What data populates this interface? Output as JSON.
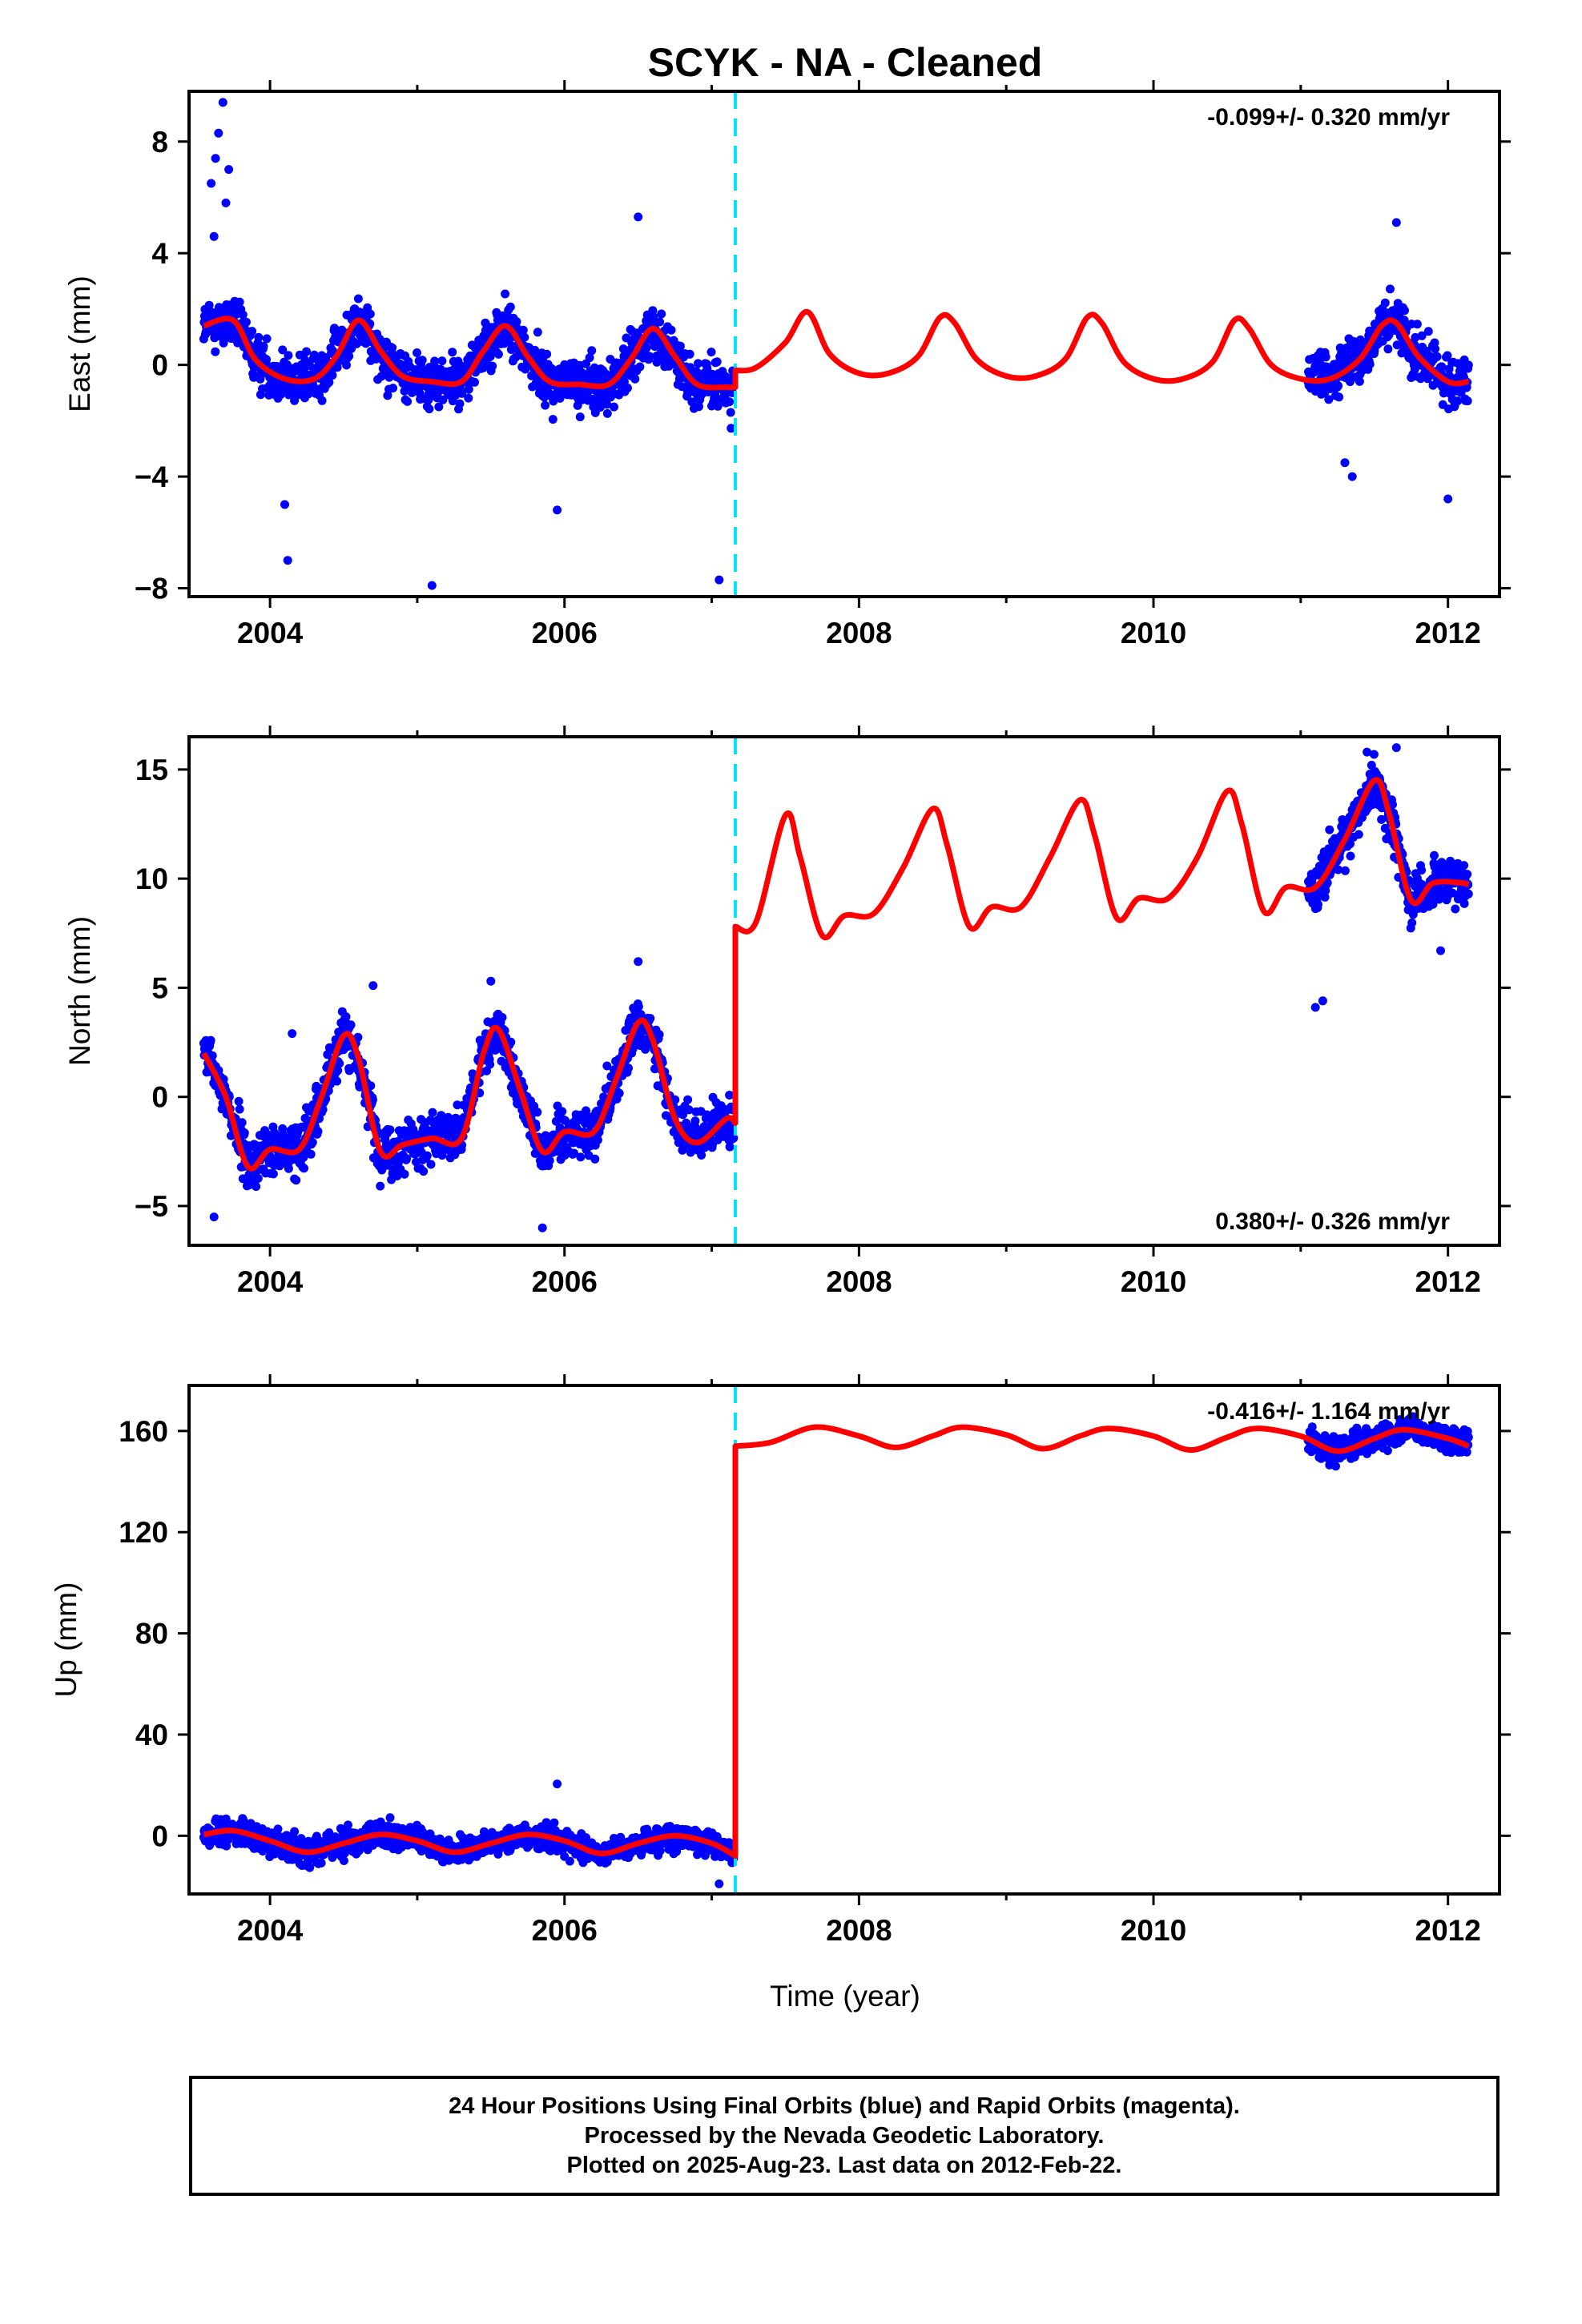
{
  "chart_data": {
    "type": "scatter",
    "title": "SCYK  - NA - Cleaned",
    "xlabel": "Time (year)",
    "xlim": [
      2003.45,
      2012.35
    ],
    "x_ticks": [
      "2004",
      "2006",
      "2008",
      "2010",
      "2012"
    ],
    "offset_epoch": 2007.16,
    "colors": {
      "data": "#0000ff",
      "model": "#ff0000",
      "offset": "#00e5ff",
      "frame": "#000000"
    },
    "grid": false,
    "data_segments": [
      [
        2003.55,
        2007.15
      ],
      [
        2011.05,
        2012.14
      ]
    ],
    "panels": [
      {
        "ylabel": "East (mm)",
        "rate": "-0.099+/- 0.320 mm/yr",
        "rate_position": "top-right",
        "ylim": [
          -8.3,
          9.8
        ],
        "y_ticks": [
          "8",
          "4",
          "0",
          "−4",
          "−8"
        ],
        "model": {
          "x": [
            2003.55,
            2003.75,
            2003.9,
            2004.1,
            2004.3,
            2004.45,
            2004.6,
            2004.75,
            2004.9,
            2005.1,
            2005.3,
            2005.45,
            2005.6,
            2005.75,
            2005.9,
            2006.1,
            2006.3,
            2006.45,
            2006.6,
            2006.75,
            2006.9,
            2007.1,
            2007.16,
            2007.16,
            2007.3,
            2007.5,
            2007.65,
            2007.8,
            2008.0,
            2008.2,
            2008.4,
            2008.55,
            2008.65,
            2008.8,
            2009.0,
            2009.2,
            2009.4,
            2009.55,
            2009.65,
            2009.8,
            2010.0,
            2010.2,
            2010.4,
            2010.55,
            2010.65,
            2010.8,
            2011.0,
            2011.2,
            2011.4,
            2011.55,
            2011.65,
            2011.8,
            2012.0,
            2012.14
          ],
          "values": [
            1.4,
            1.6,
            0.2,
            -0.5,
            -0.5,
            0.3,
            1.6,
            0.5,
            -0.4,
            -0.6,
            -0.6,
            0.5,
            1.4,
            0.3,
            -0.6,
            -0.7,
            -0.7,
            0.2,
            1.3,
            0.3,
            -0.7,
            -0.8,
            -0.8,
            -0.2,
            -0.1,
            0.8,
            1.9,
            0.4,
            -0.3,
            -0.3,
            0.3,
            1.7,
            1.5,
            0.2,
            -0.4,
            -0.4,
            0.2,
            1.7,
            1.5,
            0.1,
            -0.5,
            -0.5,
            0.1,
            1.6,
            1.3,
            0.0,
            -0.5,
            -0.5,
            0.2,
            1.4,
            1.5,
            0.3,
            -0.6,
            -0.6
          ]
        },
        "outliers": [
          [
            2003.6,
            6.5
          ],
          [
            2003.63,
            7.4
          ],
          [
            2003.65,
            8.3
          ],
          [
            2003.68,
            9.4
          ],
          [
            2003.7,
            5.8
          ],
          [
            2003.62,
            4.6
          ],
          [
            2003.72,
            7.0
          ],
          [
            2004.1,
            -5.0
          ],
          [
            2004.12,
            -7.0
          ],
          [
            2005.1,
            -7.9
          ],
          [
            2005.95,
            -5.2
          ],
          [
            2006.5,
            5.3
          ],
          [
            2007.05,
            -7.7
          ],
          [
            2011.3,
            -3.5
          ],
          [
            2011.35,
            -4.0
          ],
          [
            2011.65,
            5.1
          ],
          [
            2012.0,
            -4.8
          ]
        ]
      },
      {
        "ylabel": "North (mm)",
        "rate": "0.380+/- 0.326 mm/yr",
        "rate_position": "bottom-right",
        "ylim": [
          -6.8,
          16.5
        ],
        "y_ticks": [
          "15",
          "10",
          "5",
          "0",
          "−5"
        ],
        "model": {
          "x": [
            2003.55,
            2003.7,
            2003.85,
            2004.0,
            2004.2,
            2004.35,
            2004.5,
            2004.6,
            2004.75,
            2004.9,
            2005.1,
            2005.3,
            2005.45,
            2005.55,
            2005.7,
            2005.85,
            2006.0,
            2006.2,
            2006.35,
            2006.5,
            2006.6,
            2006.75,
            2006.9,
            2007.1,
            2007.16,
            2007.16,
            2007.3,
            2007.5,
            2007.6,
            2007.75,
            2007.9,
            2008.1,
            2008.3,
            2008.5,
            2008.6,
            2008.75,
            2008.9,
            2009.1,
            2009.3,
            2009.5,
            2009.6,
            2009.75,
            2009.9,
            2010.1,
            2010.3,
            2010.5,
            2010.6,
            2010.75,
            2010.9,
            2011.1,
            2011.3,
            2011.5,
            2011.6,
            2011.75,
            2011.9,
            2012.1,
            2012.14
          ],
          "values": [
            2.0,
            0.0,
            -3.2,
            -2.4,
            -2.4,
            0.0,
            2.8,
            1.8,
            -2.5,
            -2.2,
            -1.9,
            -1.9,
            2.0,
            3.1,
            0.3,
            -2.5,
            -1.6,
            -1.6,
            0.8,
            3.4,
            2.6,
            -1.0,
            -2.1,
            -1.0,
            -1.2,
            7.8,
            8.0,
            12.9,
            11.0,
            7.4,
            8.3,
            8.4,
            10.5,
            13.2,
            11.5,
            7.8,
            8.7,
            8.7,
            11.0,
            13.6,
            12.0,
            8.2,
            9.1,
            9.1,
            11.0,
            14.0,
            12.5,
            8.5,
            9.6,
            9.6,
            11.8,
            14.5,
            13.0,
            9.0,
            9.8,
            9.8,
            9.7
          ]
        },
        "outliers": [
          [
            2003.62,
            -5.5
          ],
          [
            2004.15,
            2.9
          ],
          [
            2004.7,
            5.1
          ],
          [
            2005.5,
            5.3
          ],
          [
            2005.85,
            -6.0
          ],
          [
            2006.5,
            6.2
          ],
          [
            2011.1,
            4.1
          ],
          [
            2011.15,
            4.4
          ],
          [
            2011.45,
            15.8
          ],
          [
            2011.65,
            16.0
          ],
          [
            2011.95,
            6.7
          ]
        ]
      },
      {
        "ylabel": "Up (mm)",
        "rate": "-0.416+/- 1.164 mm/yr",
        "rate_position": "top-right",
        "ylim": [
          -23,
          178
        ],
        "y_ticks": [
          "160",
          "120",
          "80",
          "40",
          "0"
        ],
        "model": {
          "x": [
            2003.55,
            2003.75,
            2004.0,
            2004.25,
            2004.5,
            2004.75,
            2005.0,
            2005.25,
            2005.5,
            2005.75,
            2006.0,
            2006.25,
            2006.5,
            2006.75,
            2007.0,
            2007.16,
            2007.16,
            2007.4,
            2007.7,
            2008.0,
            2008.25,
            2008.5,
            2008.7,
            2009.0,
            2009.25,
            2009.5,
            2009.7,
            2010.0,
            2010.25,
            2010.5,
            2010.7,
            2011.0,
            2011.25,
            2011.5,
            2011.7,
            2012.0,
            2012.14
          ],
          "values": [
            0.5,
            2.0,
            -2.0,
            -6.5,
            -3.0,
            0.5,
            -2.0,
            -6.5,
            -3.0,
            0.5,
            -2.0,
            -7.0,
            -3.0,
            0.0,
            -3.0,
            -8.0,
            154.0,
            155.5,
            161.5,
            158.0,
            153.5,
            158.0,
            161.5,
            158.5,
            153.0,
            158.0,
            161.0,
            158.0,
            152.5,
            157.5,
            161.0,
            158.0,
            152.0,
            157.0,
            160.5,
            157.0,
            154.0
          ]
        },
        "outliers": [
          [
            2005.95,
            20.5
          ],
          [
            2007.05,
            -19.0
          ]
        ]
      }
    ]
  },
  "footer": {
    "line1": "24 Hour Positions Using Final Orbits (blue) and Rapid Orbits (magenta).",
    "line2": "Processed by the Nevada Geodetic Laboratory.",
    "line3": "Plotted on 2025-Aug-23. Last data on 2012-Feb-22."
  }
}
